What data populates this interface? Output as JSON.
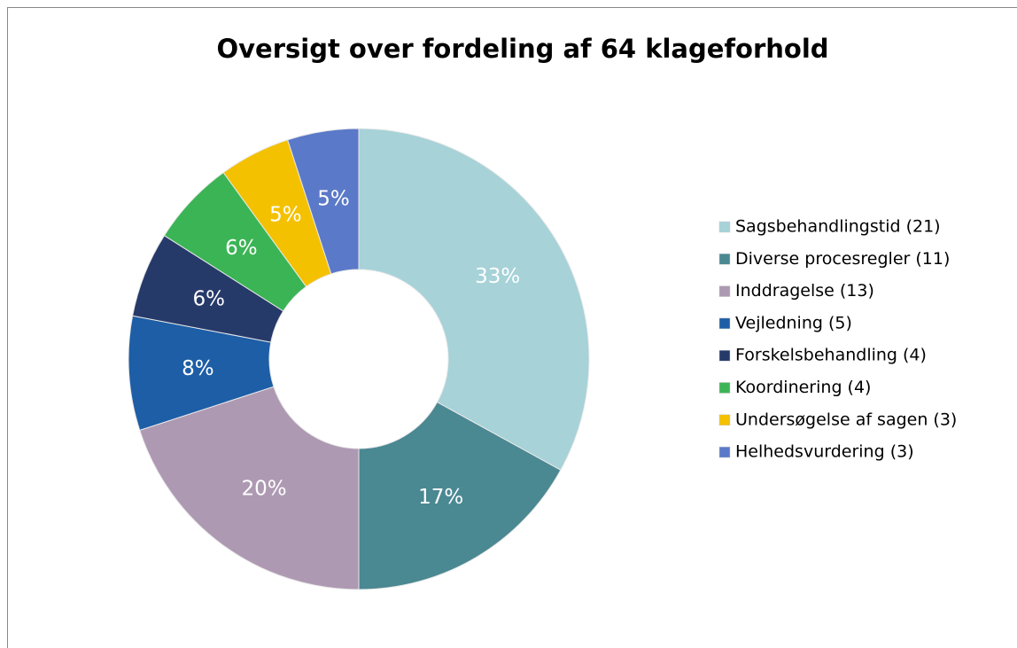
{
  "chart_data": {
    "type": "donut",
    "title": "Oversigt over fordeling  af 64 klageforhold",
    "categories": [
      "Sagsbehandlingstid (21)",
      "Diverse procesregler (11)",
      "Inddragelse (13)",
      "Vejledning (5)",
      "Forskelsbehandling (4)",
      "Koordinering (4)",
      "Undersøgelse af sagen (3)",
      "Helhedsvurdering (3)"
    ],
    "values": [
      33,
      17,
      20,
      8,
      6,
      6,
      5,
      5
    ],
    "value_labels": [
      "33%",
      "17%",
      "20%",
      "8%",
      "6%",
      "6%",
      "5%",
      "5%"
    ],
    "colors": [
      "#a6d2d8",
      "#4a8892",
      "#ae99b2",
      "#1d5ea6",
      "#263a6a",
      "#3bb455",
      "#f4c100",
      "#5b79c9"
    ],
    "legend": "right"
  }
}
